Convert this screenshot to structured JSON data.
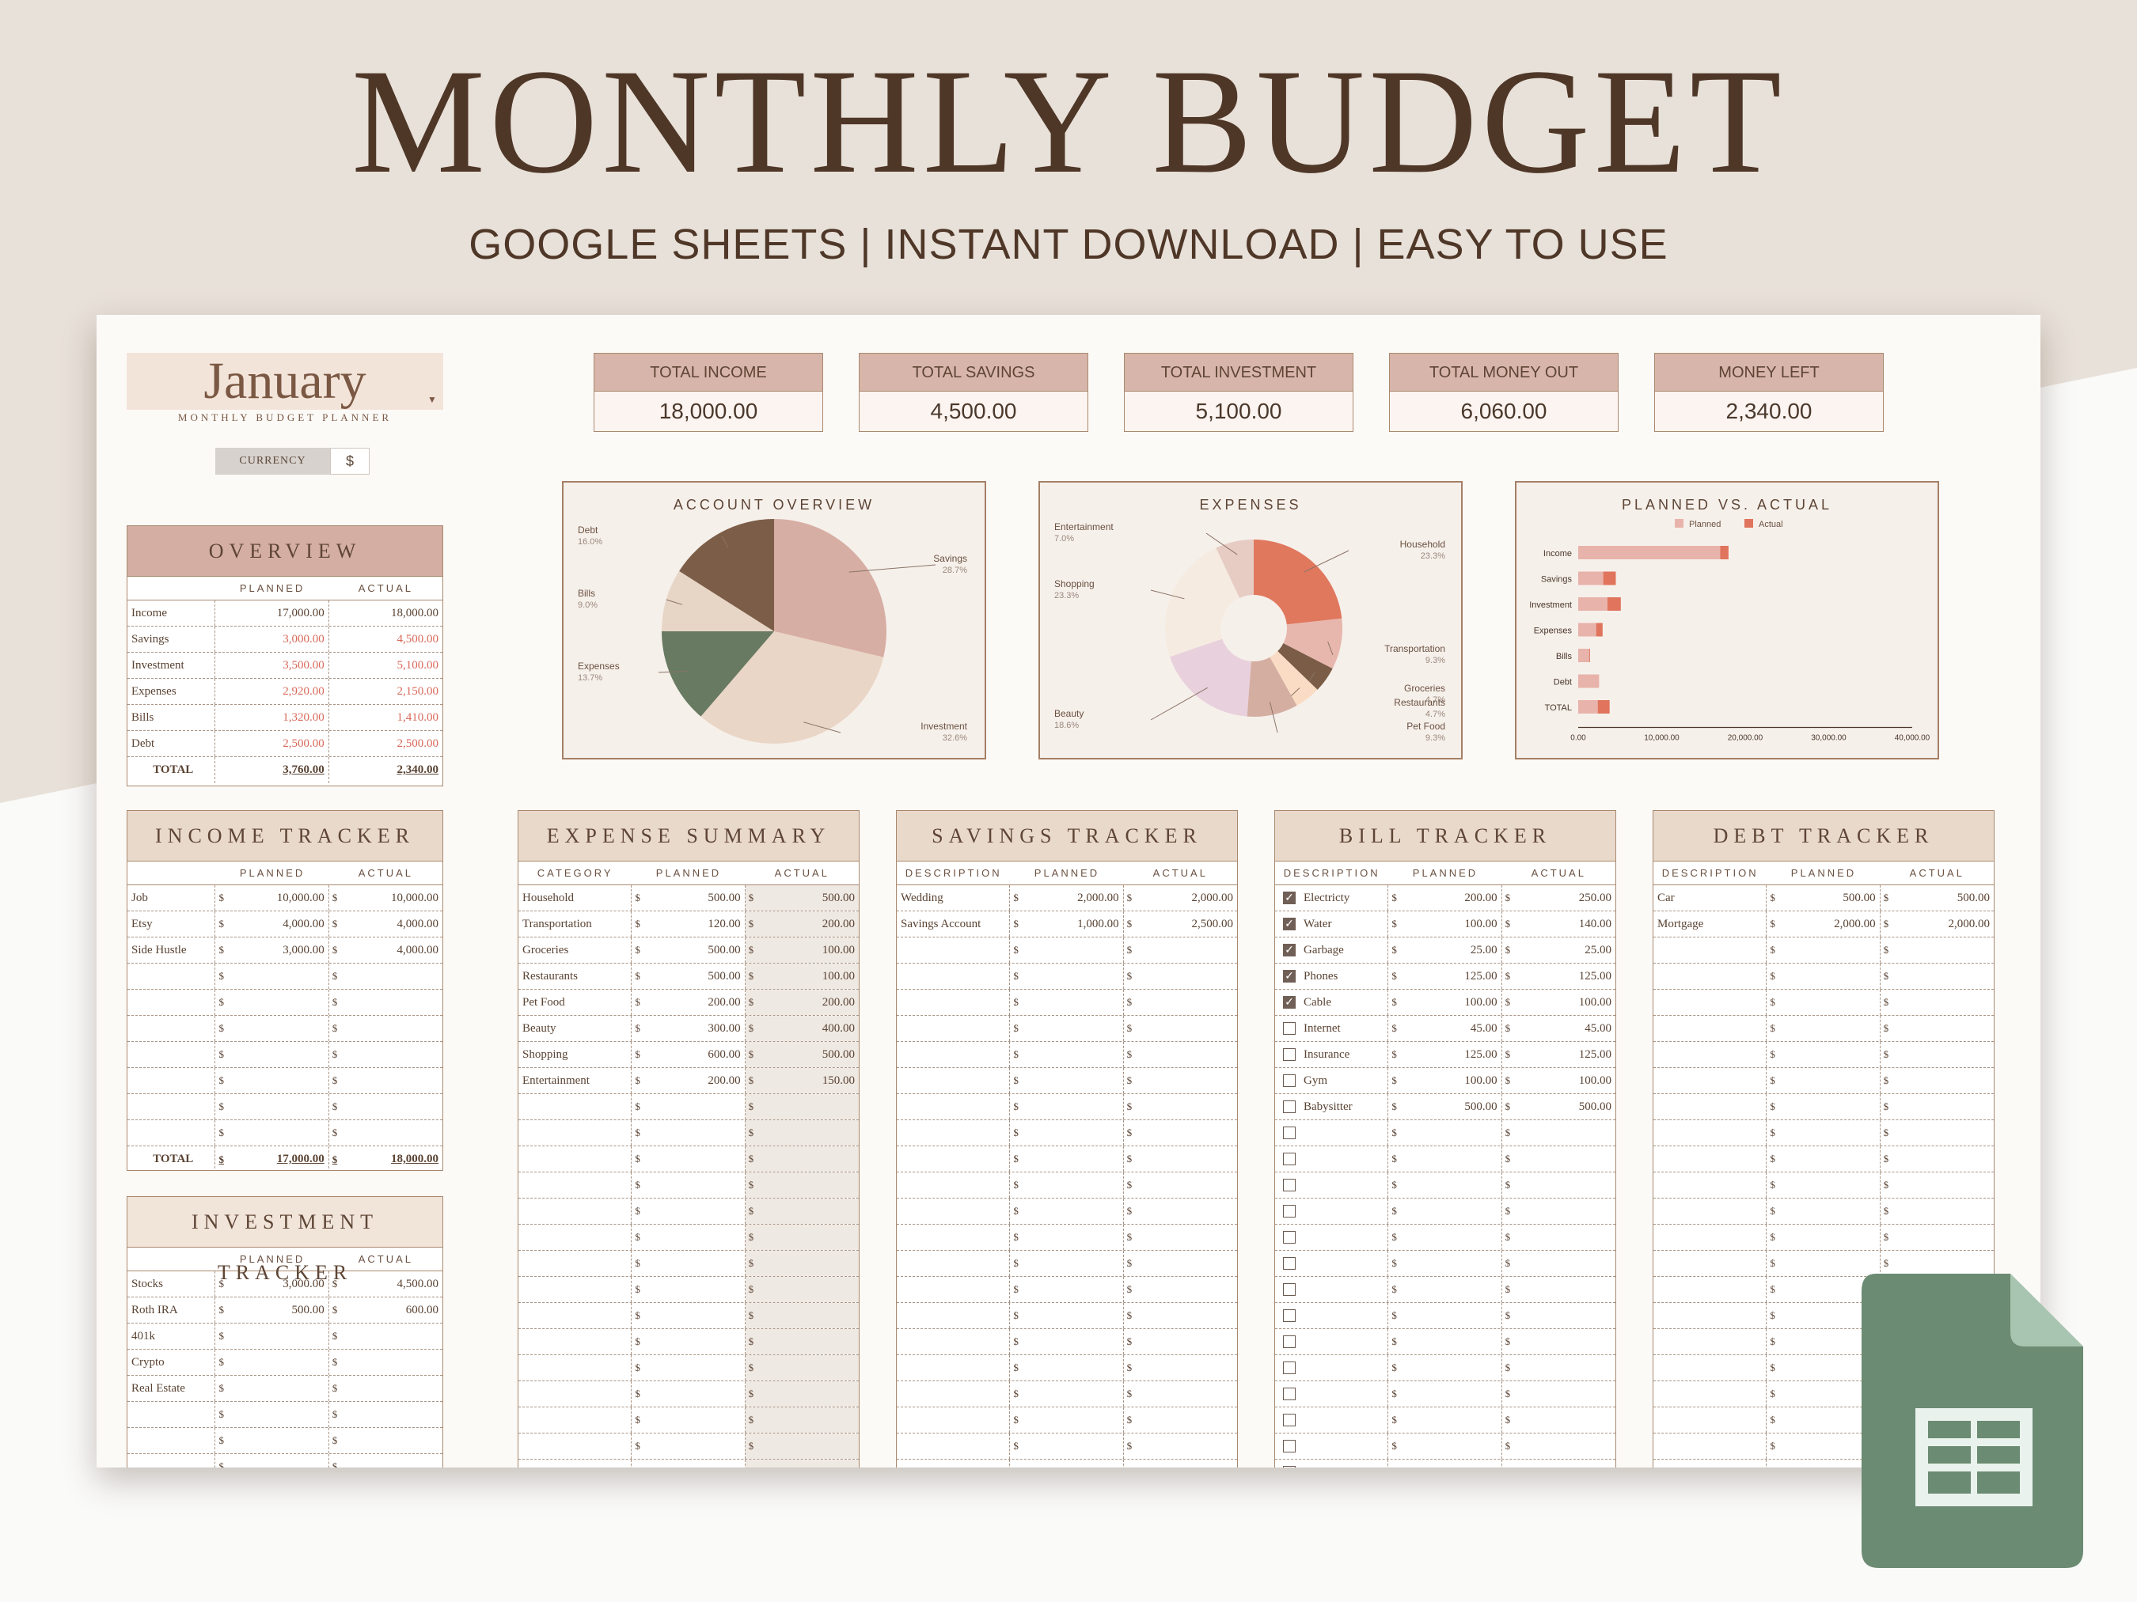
{
  "header": {
    "title": "MONTHLY BUDGET",
    "subtitle": "GOOGLE SHEETS | INSTANT DOWNLOAD | EASY TO USE"
  },
  "month": {
    "name": "January",
    "subtitle": "MONTHLY BUDGET PLANNER"
  },
  "currency": {
    "label": "CURRENCY",
    "value": "$"
  },
  "kpis": [
    {
      "label": "TOTAL INCOME",
      "value": "18,000.00"
    },
    {
      "label": "TOTAL SAVINGS",
      "value": "4,500.00"
    },
    {
      "label": "TOTAL INVESTMENT",
      "value": "5,100.00"
    },
    {
      "label": "TOTAL MONEY OUT",
      "value": "6,060.00"
    },
    {
      "label": "MONEY LEFT",
      "value": "2,340.00"
    }
  ],
  "overview": {
    "title": "OVERVIEW",
    "cols": [
      "PLANNED",
      "ACTUAL"
    ],
    "rows": [
      {
        "label": "Income",
        "planned": "17,000.00",
        "actual": "18,000.00"
      },
      {
        "label": "Savings",
        "planned": "3,000.00",
        "actual": "4,500.00"
      },
      {
        "label": "Investment",
        "planned": "3,500.00",
        "actual": "5,100.00"
      },
      {
        "label": "Expenses",
        "planned": "2,920.00",
        "actual": "2,150.00"
      },
      {
        "label": "Bills",
        "planned": "1,320.00",
        "actual": "1,410.00"
      },
      {
        "label": "Debt",
        "planned": "2,500.00",
        "actual": "2,500.00"
      }
    ],
    "total": {
      "label": "TOTAL",
      "planned": "3,760.00",
      "actual": "2,340.00"
    }
  },
  "income": {
    "title": "INCOME TRACKER",
    "cols": [
      "PLANNED",
      "ACTUAL"
    ],
    "rows": [
      {
        "label": "Job",
        "planned": "10,000.00",
        "actual": "10,000.00"
      },
      {
        "label": "Etsy",
        "planned": "4,000.00",
        "actual": "4,000.00"
      },
      {
        "label": "Side Hustle",
        "planned": "3,000.00",
        "actual": "4,000.00"
      }
    ],
    "empty_rows": 7,
    "total": {
      "label": "TOTAL",
      "planned": "17,000.00",
      "actual": "18,000.00"
    }
  },
  "investment": {
    "title": "INVESTMENT TRACKER",
    "cols": [
      "PLANNED",
      "ACTUAL"
    ],
    "rows": [
      {
        "label": "Stocks",
        "planned": "3,000.00",
        "actual": "4,500.00"
      },
      {
        "label": "Roth IRA",
        "planned": "500.00",
        "actual": "600.00"
      },
      {
        "label": "401k",
        "planned": "",
        "actual": ""
      },
      {
        "label": "Crypto",
        "planned": "",
        "actual": ""
      },
      {
        "label": "Real Estate",
        "planned": "",
        "actual": ""
      }
    ],
    "empty_rows": 3
  },
  "expense_summary": {
    "title": "EXPENSE SUMMARY",
    "cols": [
      "CATEGORY",
      "PLANNED",
      "ACTUAL"
    ],
    "rows": [
      {
        "label": "Household",
        "planned": "500.00",
        "actual": "500.00"
      },
      {
        "label": "Transportation",
        "planned": "120.00",
        "actual": "200.00"
      },
      {
        "label": "Groceries",
        "planned": "500.00",
        "actual": "100.00"
      },
      {
        "label": "Restaurants",
        "planned": "500.00",
        "actual": "100.00"
      },
      {
        "label": "Pet Food",
        "planned": "200.00",
        "actual": "200.00"
      },
      {
        "label": "Beauty",
        "planned": "300.00",
        "actual": "400.00"
      },
      {
        "label": "Shopping",
        "planned": "600.00",
        "actual": "500.00"
      },
      {
        "label": "Entertainment",
        "planned": "200.00",
        "actual": "150.00"
      }
    ],
    "empty_rows": 15
  },
  "savings": {
    "title": "SAVINGS TRACKER",
    "cols": [
      "DESCRIPTION",
      "PLANNED",
      "ACTUAL"
    ],
    "rows": [
      {
        "label": "Wedding",
        "planned": "2,000.00",
        "actual": "2,000.00"
      },
      {
        "label": "Savings Account",
        "planned": "1,000.00",
        "actual": "2,500.00"
      }
    ],
    "empty_rows": 21
  },
  "bills": {
    "title": "BILL TRACKER",
    "cols": [
      "DESCRIPTION",
      "PLANNED",
      "ACTUAL"
    ],
    "rows": [
      {
        "label": "Electricty",
        "planned": "200.00",
        "actual": "250.00",
        "paid": true
      },
      {
        "label": "Water",
        "planned": "100.00",
        "actual": "140.00",
        "paid": true
      },
      {
        "label": "Garbage",
        "planned": "25.00",
        "actual": "25.00",
        "paid": true
      },
      {
        "label": "Phones",
        "planned": "125.00",
        "actual": "125.00",
        "paid": true
      },
      {
        "label": "Cable",
        "planned": "100.00",
        "actual": "100.00",
        "paid": true
      },
      {
        "label": "Internet",
        "planned": "45.00",
        "actual": "45.00",
        "paid": false
      },
      {
        "label": "Insurance",
        "planned": "125.00",
        "actual": "125.00",
        "paid": false
      },
      {
        "label": "Gym",
        "planned": "100.00",
        "actual": "100.00",
        "paid": false
      },
      {
        "label": "Babysitter",
        "planned": "500.00",
        "actual": "500.00",
        "paid": false
      }
    ],
    "empty_rows": 14
  },
  "debt": {
    "title": "DEBT TRACKER",
    "cols": [
      "DESCRIPTION",
      "PLANNED",
      "ACTUAL"
    ],
    "rows": [
      {
        "label": "Car",
        "planned": "500.00",
        "actual": "500.00"
      },
      {
        "label": "Mortgage",
        "planned": "2,000.00",
        "actual": "2,000.00"
      }
    ],
    "empty_rows": 21
  },
  "colors": {
    "accent": "#d8b5aa",
    "brown": "#4f3728",
    "negative": "#d8695a",
    "sheets_green": "#6b8b72"
  },
  "chart_data": [
    {
      "type": "pie",
      "title": "ACCOUNT OVERVIEW",
      "slices": [
        {
          "label": "Savings",
          "pct": "28.7%",
          "value": 28.7,
          "color": "#d7aea3"
        },
        {
          "label": "Investment",
          "pct": "32.6%",
          "value": 32.6,
          "color": "#ead6c6"
        },
        {
          "label": "Expenses",
          "pct": "13.7%",
          "value": 13.7,
          "color": "#687a62"
        },
        {
          "label": "Bills",
          "pct": "9.0%",
          "value": 9.0,
          "color": "#e7d5c5"
        },
        {
          "label": "Debt",
          "pct": "16.0%",
          "value": 16.0,
          "color": "#7c5d47"
        }
      ]
    },
    {
      "type": "pie",
      "title": "EXPENSES",
      "slices": [
        {
          "label": "Household",
          "pct": "23.3%",
          "value": 23.3,
          "color": "#e0785e"
        },
        {
          "label": "Transportation",
          "pct": "9.3%",
          "value": 9.3,
          "color": "#e7b7ae"
        },
        {
          "label": "Groceries",
          "pct": "4.7%",
          "value": 4.7,
          "color": "#7a5c47"
        },
        {
          "label": "Restaurants",
          "pct": "4.7%",
          "value": 4.7,
          "color": "#f9dcc3"
        },
        {
          "label": "Pet Food",
          "pct": "9.3%",
          "value": 9.3,
          "color": "#d5aea2"
        },
        {
          "label": "Beauty",
          "pct": "18.6%",
          "value": 18.6,
          "color": "#e8d0dc"
        },
        {
          "label": "Shopping",
          "pct": "23.3%",
          "value": 23.3,
          "color": "#f5ebe1"
        },
        {
          "label": "Entertainment",
          "pct": "7.0%",
          "value": 7.0,
          "color": "#e7ccc4"
        }
      ]
    },
    {
      "type": "bar",
      "title": "PLANNED VS. ACTUAL",
      "orientation": "horizontal",
      "categories": [
        "Income",
        "Savings",
        "Investment",
        "Expenses",
        "Bills",
        "Debt",
        "TOTAL"
      ],
      "series": [
        {
          "name": "Planned",
          "color": "#e8b3aa",
          "values": [
            17000,
            3000,
            3500,
            2920,
            1320,
            2500,
            3760
          ]
        },
        {
          "name": "Actual",
          "color": "#e0745c",
          "values": [
            18000,
            4500,
            5100,
            2150,
            1410,
            2500,
            2340
          ]
        }
      ],
      "xlim": [
        0,
        40000
      ],
      "xticks": [
        "0.00",
        "10,000.00",
        "20,000.00",
        "30,000.00",
        "40,000.00"
      ],
      "legend": "top"
    }
  ]
}
